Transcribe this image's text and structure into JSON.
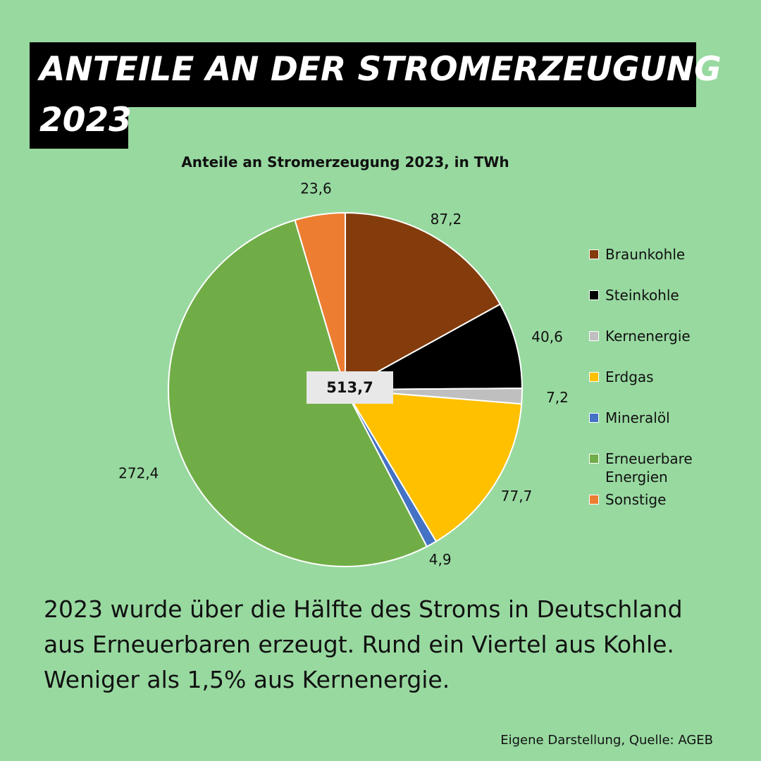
{
  "headline": {
    "line1": "ANTEILE AN DER STROMERZEUGUNG",
    "line2": "2023"
  },
  "chart_data": {
    "type": "pie",
    "title": "Anteile an Stromerzeugung 2023, in TWh",
    "total_label": "513,7",
    "legend_placement": "right",
    "start_angle_deg": 0,
    "direction": "clockwise",
    "slices": [
      {
        "name": "Braunkohle",
        "value": 87.2,
        "label": "87,2",
        "color": "#843c0c"
      },
      {
        "name": "Steinkohle",
        "value": 40.6,
        "label": "40,6",
        "color": "#000000"
      },
      {
        "name": "Kernenergie",
        "value": 7.2,
        "label": "7,2",
        "color": "#bfbfbf"
      },
      {
        "name": "Erdgas",
        "value": 77.7,
        "label": "77,7",
        "color": "#ffc000"
      },
      {
        "name": "Mineralöl",
        "value": 4.9,
        "label": "4,9",
        "color": "#4472c4"
      },
      {
        "name": "Erneuerbare Energien",
        "value": 272.4,
        "label": "272,4",
        "color": "#70ad47"
      },
      {
        "name": "Sonstige",
        "value": 23.6,
        "label": "23,6",
        "color": "#ed7d31"
      }
    ]
  },
  "body_text": "2023 wurde über die Hälfte des Stroms in Deutschland aus Erneuerbaren erzeugt. Rund ein Viertel aus Kohle. Weniger als 1,5% aus Kernenergie.",
  "source": "Eigene Darstellung, Quelle: AGEB"
}
